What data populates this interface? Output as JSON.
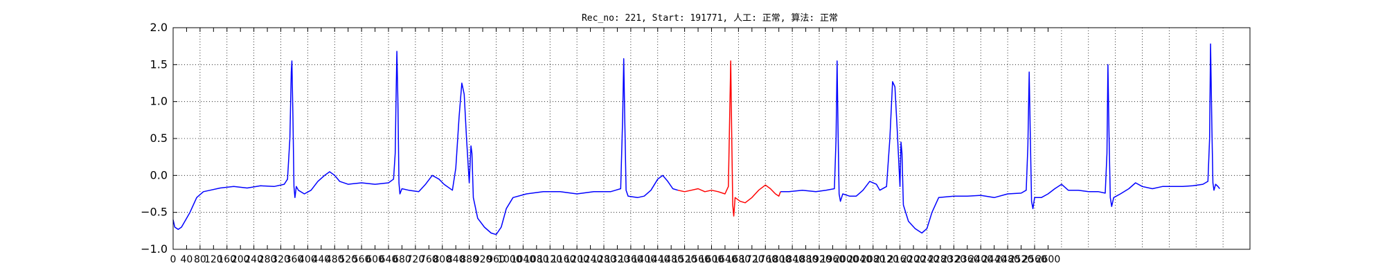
{
  "chart_data": {
    "type": "line",
    "title": "Rec_no: 221, Start: 191771, 人工: 正常, 算法: 正常",
    "xlim": [
      0,
      3200
    ],
    "ylim": [
      -1.0,
      2.0
    ],
    "yticks": [
      "2.0",
      "1.5",
      "1.0",
      "0.5",
      "0.0",
      "−0.5",
      "−1.0"
    ],
    "ytick_values": [
      2.0,
      1.5,
      1.0,
      0.5,
      0.0,
      -0.5,
      -1.0
    ],
    "xticks": [
      "0",
      "40",
      "80",
      "120",
      "160",
      "200",
      "240",
      "280",
      "320",
      "360",
      "400",
      "440",
      "480",
      "520",
      "560",
      "600",
      "640",
      "680",
      "720",
      "760",
      "800",
      "840",
      "880",
      "920",
      "960",
      "1000",
      "1040",
      "1080",
      "1120",
      "1160",
      "1200",
      "1240",
      "1280",
      "1320",
      "1360",
      "1400",
      "1440",
      "1480",
      "1520",
      "1560",
      "1600",
      "1640",
      "1680",
      "1720",
      "1760",
      "1800",
      "1840",
      "1880",
      "1920",
      "1960",
      "2000",
      "2040",
      "2080",
      "2120",
      "2160",
      "2200",
      "2240",
      "2280",
      "2320",
      "2360",
      "2400",
      "2440",
      "2480",
      "2520",
      "2560",
      "2600"
    ],
    "grid": true,
    "grid_x_step": 80,
    "grid_y_step": 0.5,
    "series": [
      {
        "color": "#0000ff",
        "points": [
          [
            0,
            -0.6
          ],
          [
            5,
            -0.7
          ],
          [
            15,
            -0.73
          ],
          [
            25,
            -0.7
          ],
          [
            35,
            -0.62
          ],
          [
            50,
            -0.5
          ],
          [
            70,
            -0.3
          ],
          [
            90,
            -0.22
          ],
          [
            110,
            -0.2
          ],
          [
            140,
            -0.17
          ],
          [
            180,
            -0.15
          ],
          [
            220,
            -0.17
          ],
          [
            260,
            -0.14
          ],
          [
            300,
            -0.15
          ],
          [
            330,
            -0.12
          ],
          [
            340,
            -0.05
          ],
          [
            347,
            0.5
          ],
          [
            351,
            1.4
          ],
          [
            353,
            1.55
          ],
          [
            356,
            0.8
          ],
          [
            359,
            -0.15
          ],
          [
            362,
            -0.3
          ],
          [
            366,
            -0.15
          ],
          [
            372,
            -0.2
          ],
          [
            390,
            -0.25
          ],
          [
            410,
            -0.2
          ],
          [
            430,
            -0.08
          ],
          [
            450,
            0.0
          ],
          [
            465,
            0.05
          ],
          [
            480,
            0.0
          ],
          [
            495,
            -0.08
          ],
          [
            520,
            -0.12
          ],
          [
            560,
            -0.1
          ],
          [
            600,
            -0.12
          ],
          [
            640,
            -0.1
          ],
          [
            655,
            -0.05
          ],
          [
            660,
            0.3
          ],
          [
            663,
            1.2
          ],
          [
            665,
            1.68
          ],
          [
            668,
            1.0
          ],
          [
            671,
            -0.1
          ],
          [
            674,
            -0.25
          ],
          [
            680,
            -0.18
          ],
          [
            700,
            -0.2
          ],
          [
            730,
            -0.22
          ],
          [
            750,
            -0.12
          ],
          [
            770,
            0.0
          ],
          [
            790,
            -0.05
          ],
          [
            805,
            -0.12
          ],
          [
            830,
            -0.2
          ],
          [
            840,
            0.1
          ],
          [
            850,
            0.8
          ],
          [
            858,
            1.25
          ],
          [
            865,
            1.1
          ],
          [
            872,
            0.5
          ],
          [
            880,
            -0.1
          ],
          [
            885,
            0.4
          ],
          [
            888,
            0.3
          ],
          [
            892,
            -0.3
          ],
          [
            905,
            -0.58
          ],
          [
            925,
            -0.7
          ],
          [
            945,
            -0.78
          ],
          [
            960,
            -0.8
          ],
          [
            975,
            -0.7
          ],
          [
            990,
            -0.45
          ],
          [
            1010,
            -0.3
          ],
          [
            1050,
            -0.25
          ],
          [
            1100,
            -0.22
          ],
          [
            1150,
            -0.22
          ],
          [
            1200,
            -0.25
          ],
          [
            1250,
            -0.22
          ],
          [
            1300,
            -0.22
          ],
          [
            1330,
            -0.18
          ],
          [
            1336,
            0.8
          ],
          [
            1339,
            1.58
          ],
          [
            1342,
            0.8
          ],
          [
            1346,
            -0.2
          ],
          [
            1352,
            -0.28
          ],
          [
            1380,
            -0.3
          ],
          [
            1400,
            -0.28
          ],
          [
            1420,
            -0.2
          ],
          [
            1440,
            -0.05
          ],
          [
            1455,
            0.0
          ],
          [
            1470,
            -0.08
          ],
          [
            1485,
            -0.18
          ],
          [
            1500,
            -0.2
          ]
        ]
      },
      {
        "color": "#ff0000",
        "points": [
          [
            1500,
            -0.2
          ],
          [
            1520,
            -0.22
          ],
          [
            1540,
            -0.2
          ],
          [
            1560,
            -0.18
          ],
          [
            1580,
            -0.22
          ],
          [
            1600,
            -0.2
          ],
          [
            1620,
            -0.22
          ],
          [
            1640,
            -0.25
          ],
          [
            1650,
            -0.15
          ],
          [
            1654,
            0.8
          ],
          [
            1657,
            1.55
          ],
          [
            1660,
            0.5
          ],
          [
            1663,
            -0.4
          ],
          [
            1666,
            -0.55
          ],
          [
            1670,
            -0.3
          ],
          [
            1685,
            -0.35
          ],
          [
            1700,
            -0.37
          ],
          [
            1720,
            -0.3
          ],
          [
            1740,
            -0.2
          ],
          [
            1760,
            -0.13
          ],
          [
            1775,
            -0.18
          ],
          [
            1790,
            -0.25
          ],
          [
            1800,
            -0.28
          ],
          [
            1805,
            -0.22
          ]
        ]
      },
      {
        "color": "#0000ff",
        "points": [
          [
            1805,
            -0.22
          ],
          [
            1830,
            -0.22
          ],
          [
            1870,
            -0.2
          ],
          [
            1910,
            -0.22
          ],
          [
            1940,
            -0.2
          ],
          [
            1965,
            -0.18
          ],
          [
            1970,
            0.5
          ],
          [
            1973,
            1.55
          ],
          [
            1976,
            0.6
          ],
          [
            1979,
            -0.25
          ],
          [
            1983,
            -0.35
          ],
          [
            1990,
            -0.25
          ],
          [
            2010,
            -0.28
          ],
          [
            2030,
            -0.28
          ],
          [
            2050,
            -0.2
          ],
          [
            2070,
            -0.08
          ],
          [
            2090,
            -0.12
          ],
          [
            2100,
            -0.2
          ],
          [
            2120,
            -0.15
          ],
          [
            2130,
            0.5
          ],
          [
            2138,
            1.27
          ],
          [
            2145,
            1.2
          ],
          [
            2152,
            0.6
          ],
          [
            2160,
            -0.15
          ],
          [
            2163,
            0.45
          ],
          [
            2166,
            0.3
          ],
          [
            2170,
            -0.4
          ],
          [
            2185,
            -0.62
          ],
          [
            2205,
            -0.72
          ],
          [
            2225,
            -0.78
          ],
          [
            2240,
            -0.72
          ],
          [
            2255,
            -0.5
          ],
          [
            2275,
            -0.3
          ],
          [
            2320,
            -0.28
          ],
          [
            2360,
            -0.28
          ],
          [
            2400,
            -0.27
          ],
          [
            2440,
            -0.3
          ],
          [
            2480,
            -0.25
          ],
          [
            2520,
            -0.24
          ],
          [
            2535,
            -0.2
          ],
          [
            2540,
            0.4
          ],
          [
            2544,
            1.4
          ],
          [
            2547,
            0.6
          ],
          [
            2551,
            -0.35
          ],
          [
            2555,
            -0.45
          ],
          [
            2560,
            -0.3
          ],
          [
            2580,
            -0.3
          ],
          [
            2600,
            -0.25
          ],
          [
            2620,
            -0.18
          ],
          [
            2640,
            -0.12
          ],
          [
            2660,
            -0.2
          ],
          [
            2690,
            -0.2
          ],
          [
            2720,
            -0.22
          ],
          [
            2750,
            -0.22
          ],
          [
            2770,
            -0.24
          ],
          [
            2775,
            0.3
          ],
          [
            2778,
            1.5
          ],
          [
            2781,
            0.6
          ],
          [
            2785,
            -0.3
          ],
          [
            2789,
            -0.42
          ],
          [
            2795,
            -0.3
          ],
          [
            2815,
            -0.25
          ],
          [
            2840,
            -0.18
          ],
          [
            2860,
            -0.1
          ],
          [
            2880,
            -0.15
          ],
          [
            2910,
            -0.18
          ],
          [
            2940,
            -0.15
          ],
          [
            2970,
            -0.15
          ],
          [
            3000,
            -0.15
          ],
          [
            3030,
            -0.14
          ],
          [
            3060,
            -0.12
          ],
          [
            3075,
            -0.08
          ],
          [
            3080,
            0.5
          ],
          [
            3083,
            1.78
          ],
          [
            3087,
            0.6
          ],
          [
            3090,
            -0.1
          ],
          [
            3093,
            -0.2
          ],
          [
            3098,
            -0.12
          ],
          [
            3105,
            -0.15
          ],
          [
            3110,
            -0.18
          ]
        ]
      }
    ]
  }
}
